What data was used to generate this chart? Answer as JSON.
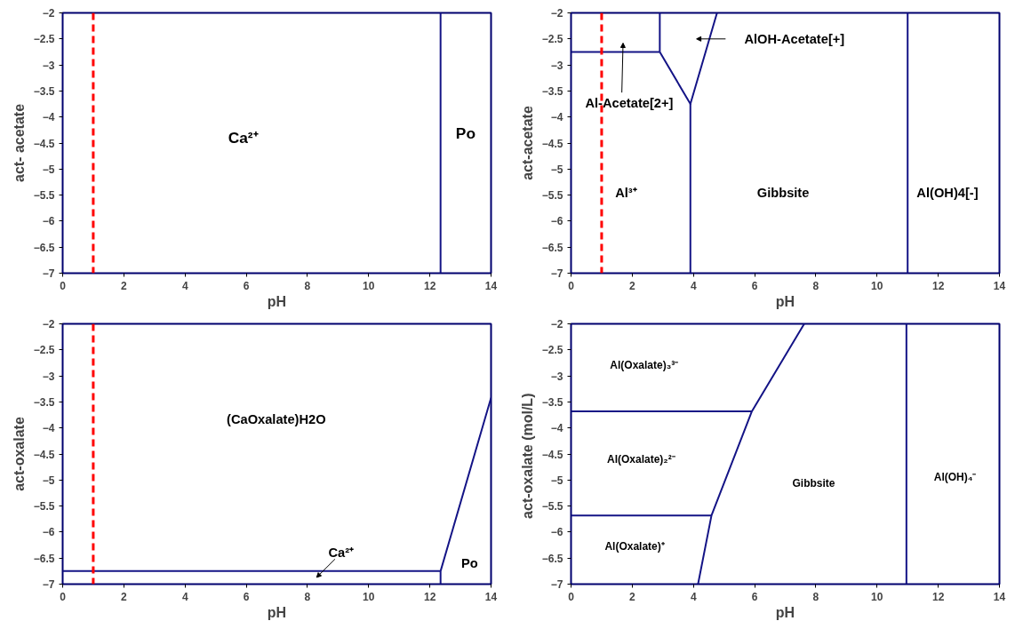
{
  "chart_data": [
    {
      "type": "line",
      "xlabel": "pH",
      "ylabel": "act- acetate",
      "xlim": [
        0,
        14
      ],
      "ylim": [
        -7,
        -2
      ],
      "xticks": [
        0,
        2,
        4,
        6,
        8,
        10,
        12,
        14
      ],
      "yticks": [
        -2,
        -2.5,
        -3,
        -3.5,
        -4,
        -4.5,
        -5,
        -5.5,
        -6,
        -6.5,
        -7
      ],
      "grid": false,
      "line_style": "solid",
      "series": [
        {
          "color": "#141486",
          "x": [
            12.35,
            12.35
          ],
          "values": [
            -7,
            -2
          ]
        }
      ],
      "ref_lines": [
        {
          "axis": "x",
          "value": 1,
          "color": "#ff0000",
          "line_style": "dashed"
        }
      ],
      "annotations": [
        "Ca²⁺",
        "Po"
      ]
    },
    {
      "type": "line",
      "xlabel": "pH",
      "ylabel": "act-acetate",
      "xlim": [
        0,
        14
      ],
      "ylim": [
        -7,
        -2
      ],
      "xticks": [
        0,
        2,
        4,
        6,
        8,
        10,
        12,
        14
      ],
      "yticks": [
        -2,
        -2.5,
        -3,
        -3.5,
        -4,
        -4.5,
        -5,
        -5.5,
        -6,
        -6.5,
        -7
      ],
      "grid": false,
      "line_style": "solid",
      "series": [
        {
          "color": "#141486",
          "x": [
            0,
            2.9
          ],
          "values": [
            -2.75,
            -2.75
          ]
        },
        {
          "color": "#141486",
          "x": [
            2.9,
            2.9
          ],
          "values": [
            -2.75,
            -2
          ]
        },
        {
          "color": "#141486",
          "x": [
            2.9,
            3.9,
            4.77
          ],
          "values": [
            -2.75,
            -3.75,
            -2
          ]
        },
        {
          "color": "#141486",
          "x": [
            3.9,
            3.9
          ],
          "values": [
            -3.75,
            -7
          ]
        },
        {
          "color": "#141486",
          "x": [
            11,
            11
          ],
          "values": [
            -7,
            -2
          ]
        }
      ],
      "ref_lines": [
        {
          "axis": "x",
          "value": 1,
          "color": "#ff0000",
          "line_style": "dashed"
        }
      ],
      "annotations": [
        "AlOH-Acetate[+]",
        "Al-Acetate[2+]",
        "Al³⁺",
        "Gibbsite",
        "Al(OH)4[-]"
      ]
    },
    {
      "type": "line",
      "xlabel": "pH",
      "ylabel": "act-oxalate",
      "xlim": [
        0,
        14
      ],
      "ylim": [
        -7,
        -2
      ],
      "xticks": [
        0,
        2,
        4,
        6,
        8,
        10,
        12,
        14
      ],
      "yticks": [
        -2,
        -2.5,
        -3,
        -3.5,
        -4,
        -4.5,
        -5,
        -5.5,
        -6,
        -6.5,
        -7
      ],
      "grid": false,
      "line_style": "solid",
      "series": [
        {
          "color": "#141486",
          "x": [
            0,
            12.35
          ],
          "values": [
            -6.75,
            -6.75
          ]
        },
        {
          "color": "#141486",
          "x": [
            12.35,
            12.35,
            14
          ],
          "values": [
            -7,
            -6.75,
            -3.42
          ]
        }
      ],
      "ref_lines": [
        {
          "axis": "x",
          "value": 1,
          "color": "#ff0000",
          "line_style": "dashed"
        }
      ],
      "annotations": [
        "(CaOxalate)H2O",
        "Ca²⁺",
        "Po"
      ]
    },
    {
      "type": "line",
      "xlabel": "pH",
      "ylabel": "act-oxalate  (mol/L)",
      "xlim": [
        0,
        14
      ],
      "ylim": [
        -7,
        -2
      ],
      "xticks": [
        0,
        2,
        4,
        6,
        8,
        10,
        12,
        14
      ],
      "yticks": [
        -2,
        -2.5,
        -3,
        -3.5,
        -4,
        -4.5,
        -5,
        -5.5,
        -6,
        -6.5,
        -7
      ],
      "grid": false,
      "line_style": "solid",
      "series": [
        {
          "color": "#141486",
          "x": [
            0,
            5.91
          ],
          "values": [
            -3.68,
            -3.68
          ]
        },
        {
          "color": "#141486",
          "x": [
            0,
            4.59
          ],
          "values": [
            -5.68,
            -5.68
          ]
        },
        {
          "color": "#141486",
          "x": [
            4.15,
            4.59,
            5.91,
            7.62
          ],
          "values": [
            -7,
            -5.68,
            -3.68,
            -2
          ]
        },
        {
          "color": "#141486",
          "x": [
            10.96,
            10.96
          ],
          "values": [
            -7,
            -2
          ]
        }
      ],
      "annotations": [
        "Al(Oxalate)₃³⁻",
        "Al(Oxalate)₂²⁻",
        "Al(Oxalate)⁺",
        "Gibbsite",
        "Al(OH)₄⁻"
      ]
    }
  ]
}
